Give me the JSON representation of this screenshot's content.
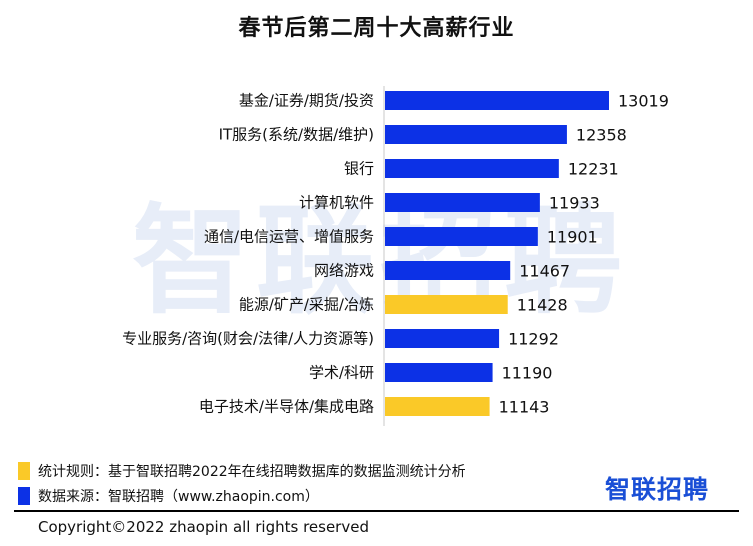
{
  "chart_data": {
    "type": "bar",
    "orientation": "horizontal",
    "title": "春节后第二周十大高薪行业",
    "categories": [
      "基金/证券/期货/投资",
      "IT服务(系统/数据/维护)",
      "银行",
      "计算机软件",
      "通信/电信运营、增值服务",
      "网络游戏",
      "能源/矿产/采掘/冶炼",
      "专业服务/咨询(财会/法律/人力资源等)",
      "学术/科研",
      "电子技术/半导体/集成电路"
    ],
    "values": [
      13019,
      12358,
      12231,
      11933,
      11901,
      11467,
      11428,
      11292,
      11190,
      11143
    ],
    "highlighted": [
      false,
      false,
      false,
      false,
      false,
      false,
      true,
      false,
      false,
      true
    ],
    "xlim": [
      9500,
      13019
    ],
    "grid": false,
    "colors": {
      "default": "#0c31e6",
      "highlight": "#fac928"
    }
  },
  "watermark_text": "智联招聘",
  "footer": {
    "rule_label": "统计规则：基于智联招聘2022年在线招聘数据库的数据监测统计分析",
    "source_label": "数据来源：智联招聘（www.zhaopin.com）",
    "brand": "智联招聘",
    "copyright": "Copyright©2022 zhaopin all rights reserved"
  }
}
